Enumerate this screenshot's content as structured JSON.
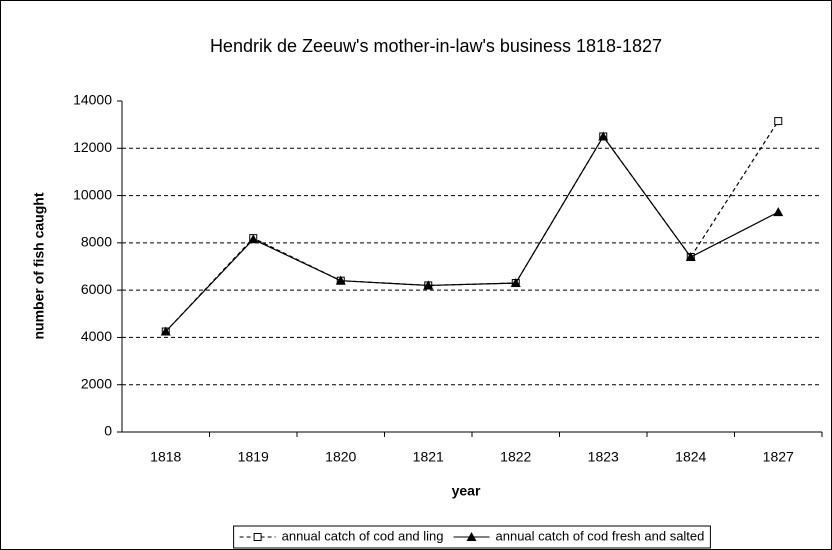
{
  "chart_data": {
    "type": "line",
    "title": "Hendrik de Zeeuw's mother-in-law's business 1818-1827",
    "x_label": "year",
    "y_label": "number of fish caught",
    "categories": [
      "1818",
      "1819",
      "1820",
      "1821",
      "1822",
      "1823",
      "1824",
      "1827"
    ],
    "series": [
      {
        "name": "annual catch of cod and ling",
        "color": "#000000",
        "line_style": "dashed",
        "marker": "square",
        "values": [
          4250,
          8200,
          6400,
          6200,
          6300,
          12500,
          7400,
          13150
        ]
      },
      {
        "name": "annual catch of cod fresh and salted",
        "color": "#000000",
        "line_style": "solid",
        "marker": "triangle",
        "values": [
          4250,
          8150,
          6400,
          6200,
          6300,
          12500,
          7400,
          9300
        ]
      }
    ],
    "ylim": [
      0,
      14000
    ],
    "yticks": [
      0,
      2000,
      4000,
      6000,
      8000,
      10000,
      12000,
      14000
    ],
    "grid": true,
    "legend": "bottom"
  }
}
